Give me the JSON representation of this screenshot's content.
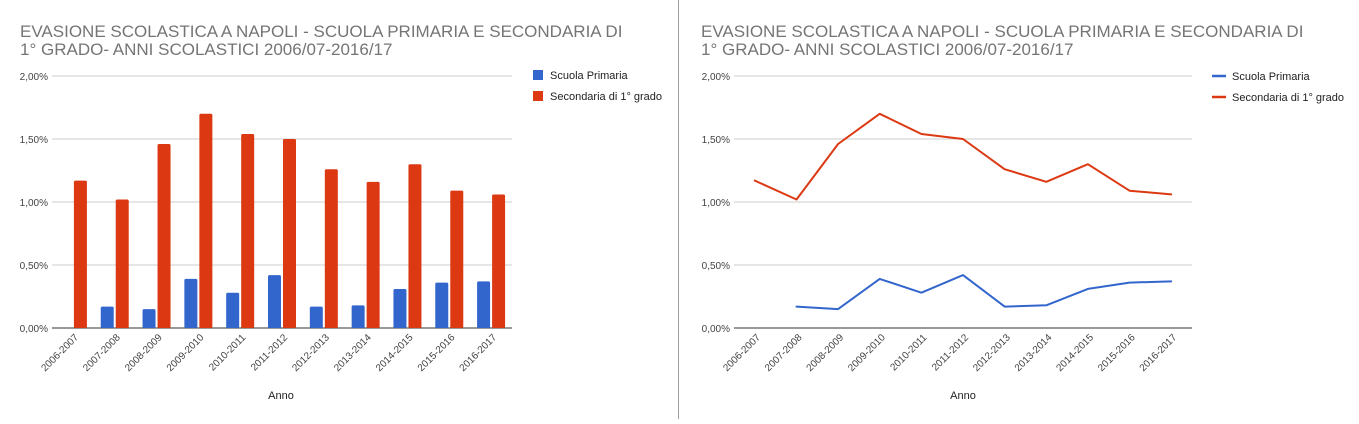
{
  "charts": [
    {
      "type": "bar",
      "title_lines": [
        "EVASIONE SCOLASTICA A NAPOLI - SCUOLA PRIMARIA E SECONDARIA DI",
        "1° GRADO- ANNI SCOLASTICI 2006/07-2016/17"
      ],
      "xlabel": "Anno",
      "y_ticks": [
        "0,00%",
        "0,50%",
        "1,00%",
        "1,50%",
        "2,00%"
      ],
      "legend": [
        {
          "name": "Scuola Primaria",
          "color": "#3366cc"
        },
        {
          "name": "Secondaria di 1° grado",
          "color": "#dc3912"
        }
      ]
    },
    {
      "type": "line",
      "title_lines": [
        "EVASIONE SCOLASTICA A NAPOLI - SCUOLA PRIMARIA E SECONDARIA DI",
        "1° GRADO- ANNI SCOLASTICI 2006/07-2016/17"
      ],
      "xlabel": "Anno",
      "y_ticks": [
        "0,00%",
        "0,50%",
        "1,00%",
        "1,50%",
        "2,00%"
      ],
      "legend": [
        {
          "name": "Scuola Primaria",
          "color": "#3366cc"
        },
        {
          "name": "Secondaria di 1° grado",
          "color": "#dc3912"
        }
      ]
    }
  ],
  "chart_data": [
    {
      "type": "bar",
      "title": "EVASIONE SCOLASTICA A NAPOLI - SCUOLA PRIMARIA E SECONDARIA DI 1° GRADO- ANNI SCOLASTICI 2006/07-2016/17",
      "xlabel": "Anno",
      "ylabel": "",
      "categories": [
        "2006-2007",
        "2007-2008",
        "2008-2009",
        "2009-2010",
        "2010-2011",
        "2011-2012",
        "2012-2013",
        "2013-2014",
        "2014-2015",
        "2015-2016",
        "2016-2017"
      ],
      "series": [
        {
          "name": "Scuola Primaria",
          "color": "#3366cc",
          "values": [
            null,
            0.17,
            0.15,
            0.39,
            0.28,
            0.42,
            0.17,
            0.18,
            0.31,
            0.36,
            0.37
          ]
        },
        {
          "name": "Secondaria di 1° grado",
          "color": "#dc3912",
          "values": [
            1.17,
            1.02,
            1.46,
            1.7,
            1.54,
            1.5,
            1.26,
            1.16,
            1.3,
            1.09,
            1.06
          ]
        }
      ],
      "ylim": [
        0,
        2
      ],
      "y_unit": "%",
      "grid": true,
      "legend_position": "right"
    },
    {
      "type": "line",
      "title": "EVASIONE SCOLASTICA A NAPOLI - SCUOLA PRIMARIA E SECONDARIA DI 1° GRADO- ANNI SCOLASTICI 2006/07-2016/17",
      "xlabel": "Anno",
      "ylabel": "",
      "categories": [
        "2006-2007",
        "2007-2008",
        "2008-2009",
        "2009-2010",
        "2010-2011",
        "2011-2012",
        "2012-2013",
        "2013-2014",
        "2014-2015",
        "2015-2016",
        "2016-2017"
      ],
      "series": [
        {
          "name": "Scuola Primaria",
          "color": "#3366cc",
          "values": [
            null,
            0.17,
            0.15,
            0.39,
            0.28,
            0.42,
            0.17,
            0.18,
            0.31,
            0.36,
            0.37
          ]
        },
        {
          "name": "Secondaria di 1° grado",
          "color": "#dc3912",
          "values": [
            1.17,
            1.02,
            1.46,
            1.7,
            1.54,
            1.5,
            1.26,
            1.16,
            1.3,
            1.09,
            1.06
          ]
        }
      ],
      "ylim": [
        0,
        2
      ],
      "y_unit": "%",
      "grid": true,
      "legend_position": "right"
    }
  ]
}
